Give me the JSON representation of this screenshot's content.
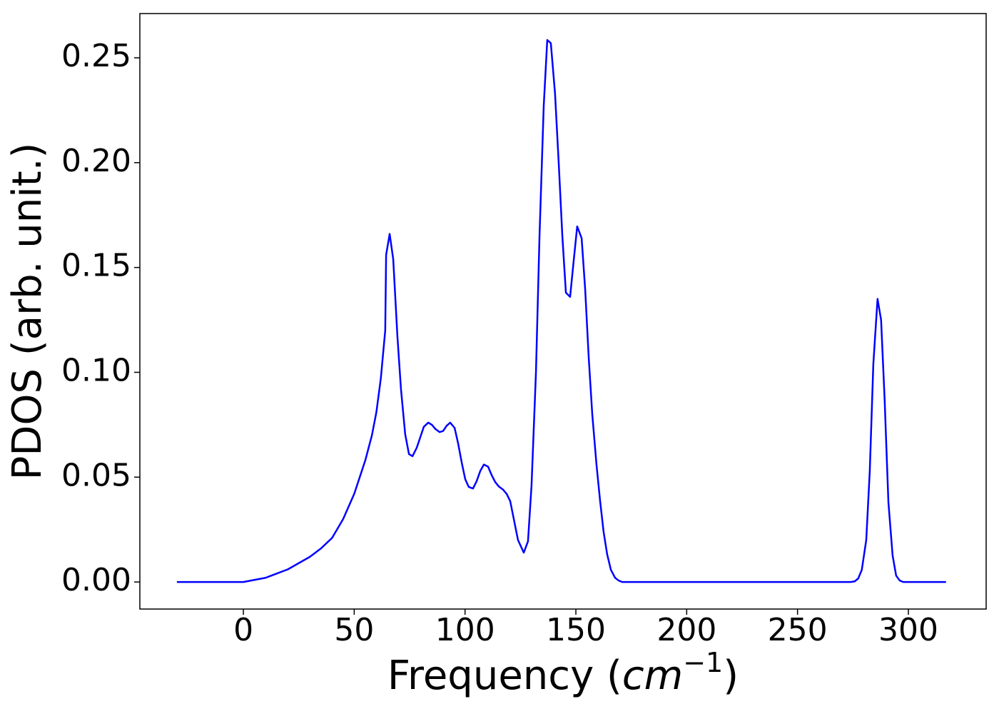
{
  "chart_data": {
    "type": "line",
    "xlabel": {
      "text": "Frequency (",
      "unit": "cm",
      "exponent": "−1",
      "close": ")"
    },
    "ylabel": "PDOS (arb. unit.)",
    "color": "#0000ff",
    "x": [
      -30,
      -10,
      0,
      10,
      20,
      30,
      35,
      40,
      45,
      50,
      55,
      58,
      60,
      62,
      64,
      64.4,
      66,
      67.6,
      69.5,
      71.1,
      73,
      74.7,
      76.3,
      78.2,
      79.8,
      81.4,
      83.4,
      85,
      86.6,
      88.5,
      90.1,
      91.7,
      93.3,
      95.3,
      96.9,
      98.5,
      100.1,
      101.7,
      103.6,
      105.2,
      106.9,
      108.5,
      110.4,
      112,
      113.6,
      115.2,
      117.2,
      118.8,
      120.4,
      122,
      123.9,
      126.5,
      128.4,
      130,
      132,
      133.6,
      135.5,
      137.1,
      138.7,
      140.6,
      142.3,
      143.9,
      145.5,
      147.4,
      149,
      150.6,
      152.6,
      154.2,
      155.8,
      157.4,
      159.3,
      160.9,
      162.5,
      164.1,
      165.8,
      167.7,
      169.3,
      170.9,
      200,
      250,
      274,
      275.8,
      277.4,
      279,
      281,
      282.6,
      284.2,
      286.1,
      287.7,
      289.3,
      291,
      292.9,
      294.5,
      296.1,
      297.7,
      317
    ],
    "values": [
      0,
      0,
      0,
      0.002,
      0.006,
      0.012,
      0.016,
      0.021,
      0.03,
      0.042,
      0.058,
      0.07,
      0.081,
      0.097,
      0.12,
      0.156,
      0.166,
      0.154,
      0.117,
      0.092,
      0.0705,
      0.061,
      0.06,
      0.064,
      0.069,
      0.074,
      0.076,
      0.075,
      0.073,
      0.0715,
      0.072,
      0.0745,
      0.076,
      0.0735,
      0.066,
      0.057,
      0.049,
      0.0453,
      0.0446,
      0.048,
      0.053,
      0.056,
      0.055,
      0.051,
      0.0477,
      0.0456,
      0.044,
      0.042,
      0.0385,
      0.03,
      0.02,
      0.014,
      0.0194,
      0.046,
      0.1,
      0.165,
      0.227,
      0.2585,
      0.257,
      0.233,
      0.199,
      0.165,
      0.138,
      0.136,
      0.153,
      0.1696,
      0.164,
      0.1396,
      0.107,
      0.08,
      0.056,
      0.039,
      0.024,
      0.0133,
      0.0058,
      0.002,
      0.0007,
      0,
      0,
      0,
      0,
      0.0003,
      0.0017,
      0.0058,
      0.02,
      0.053,
      0.104,
      0.135,
      0.125,
      0.087,
      0.038,
      0.0126,
      0.003,
      0.0007,
      0,
      0
    ],
    "xlim": [
      -46.7,
      335.1
    ],
    "ylim": [
      -0.0129,
      0.2711
    ],
    "xticks": [
      0,
      50,
      100,
      150,
      200,
      250,
      300
    ],
    "yticks": [
      {
        "value": 0,
        "label": "0.00"
      },
      0.05,
      {
        "value": 0.1,
        "label": "0.10"
      },
      0.15,
      {
        "value": 0.2,
        "label": "0.20"
      },
      0.25
    ]
  }
}
